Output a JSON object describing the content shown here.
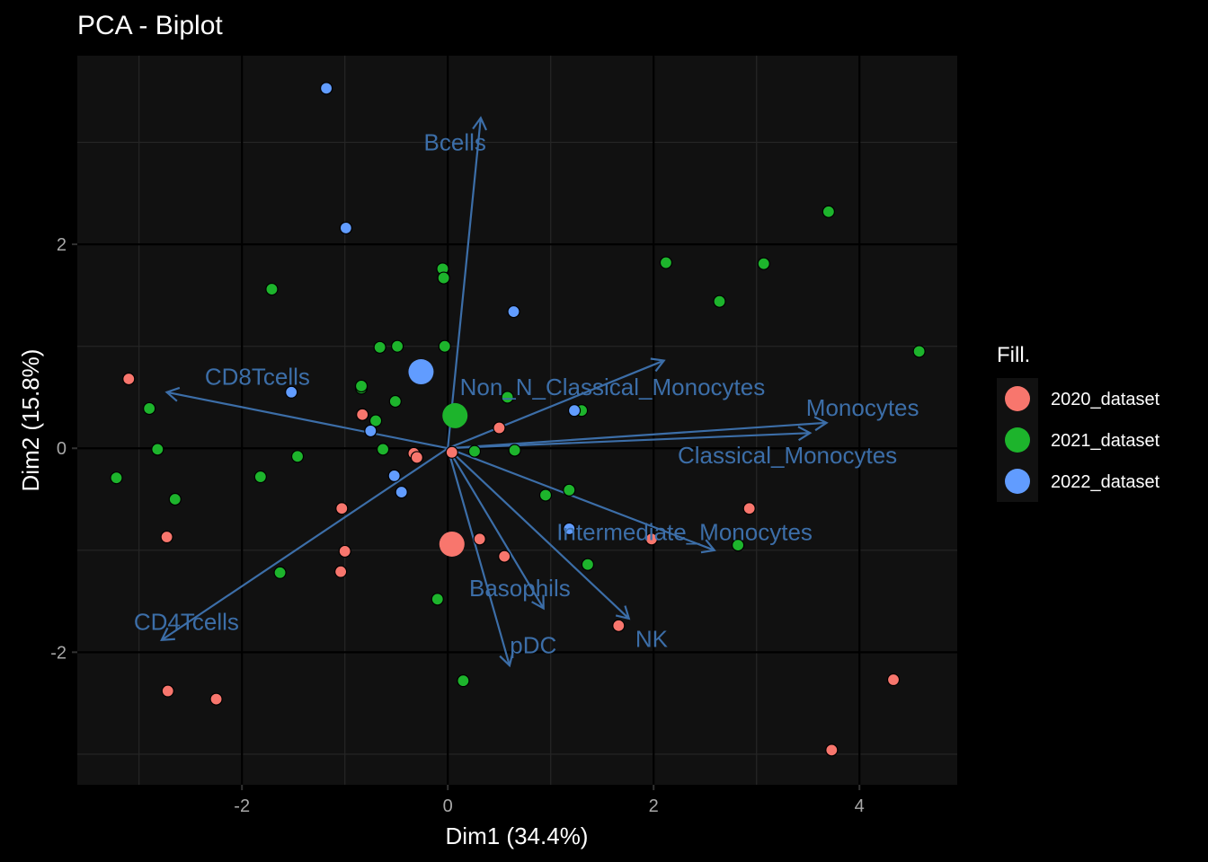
{
  "chart_data": {
    "type": "scatter",
    "title": "PCA - Biplot",
    "xlabel": "Dim1 (34.4%)",
    "ylabel": "Dim2 (15.8%)",
    "xlim": [
      -3.6,
      4.95
    ],
    "ylim": [
      -3.3,
      3.85
    ],
    "x_ticks": [
      -2,
      0,
      2,
      4
    ],
    "y_ticks": [
      -2,
      0,
      2
    ],
    "x_tick_labels": [
      "-2",
      "0",
      "2",
      "4"
    ],
    "y_tick_labels": [
      "-2",
      "0",
      "2"
    ],
    "grid": true,
    "legend": {
      "title": "Fill.",
      "position": "right",
      "entries": [
        "2020_dataset",
        "2021_dataset",
        "2022_dataset"
      ]
    },
    "colors": {
      "2020_dataset": "#F8766D",
      "2021_dataset": "#1DB42C",
      "2022_dataset": "#619CFF",
      "arrow": "#3C6EA8",
      "panel": "#111111",
      "grid_major": "#000000",
      "grid_minor": "#262626"
    },
    "series": [
      {
        "name": "2020_dataset",
        "points": [
          [
            -3.1,
            0.68
          ],
          [
            -0.83,
            0.33
          ],
          [
            -2.73,
            -0.87
          ],
          [
            -1.03,
            -0.59
          ],
          [
            -1.0,
            -1.01
          ],
          [
            -1.04,
            -1.21
          ],
          [
            -0.33,
            -0.05
          ],
          [
            -0.3,
            -0.09
          ],
          [
            0.5,
            0.2
          ],
          [
            0.31,
            -0.89
          ],
          [
            0.55,
            -1.06
          ],
          [
            1.66,
            -1.74
          ],
          [
            1.98,
            -0.89
          ],
          [
            2.93,
            -0.59
          ],
          [
            -2.72,
            -2.38
          ],
          [
            -2.25,
            -2.46
          ],
          [
            3.73,
            -2.96
          ],
          [
            4.33,
            -2.27
          ],
          [
            0.04,
            -0.04
          ]
        ],
        "centroid": [
          0.04,
          -0.94
        ]
      },
      {
        "name": "2021_dataset",
        "points": [
          [
            -1.71,
            1.56
          ],
          [
            -0.05,
            1.76
          ],
          [
            -0.04,
            1.67
          ],
          [
            -0.66,
            0.99
          ],
          [
            -0.49,
            1.0
          ],
          [
            -0.03,
            1.0
          ],
          [
            -0.84,
            0.59
          ],
          [
            -0.84,
            0.61
          ],
          [
            -2.9,
            0.39
          ],
          [
            -0.51,
            0.46
          ],
          [
            -0.7,
            0.27
          ],
          [
            -2.82,
            -0.01
          ],
          [
            -0.63,
            -0.01
          ],
          [
            -1.46,
            -0.08
          ],
          [
            -3.22,
            -0.29
          ],
          [
            -1.82,
            -0.28
          ],
          [
            -2.65,
            -0.5
          ],
          [
            -1.63,
            -1.22
          ],
          [
            -0.1,
            -1.48
          ],
          [
            0.15,
            -2.28
          ],
          [
            0.26,
            -0.03
          ],
          [
            0.65,
            -0.02
          ],
          [
            0.58,
            0.5
          ],
          [
            1.3,
            0.37
          ],
          [
            0.95,
            -0.46
          ],
          [
            1.18,
            -0.41
          ],
          [
            1.36,
            -1.14
          ],
          [
            2.12,
            1.82
          ],
          [
            2.64,
            1.44
          ],
          [
            3.07,
            1.81
          ],
          [
            3.7,
            2.32
          ],
          [
            4.58,
            0.95
          ],
          [
            2.82,
            -0.95
          ]
        ],
        "centroid": [
          0.07,
          0.32
        ]
      },
      {
        "name": "2022_dataset",
        "points": [
          [
            -1.18,
            3.53
          ],
          [
            -0.99,
            2.16
          ],
          [
            0.64,
            1.34
          ],
          [
            -1.52,
            0.55
          ],
          [
            -0.75,
            0.17
          ],
          [
            -0.52,
            -0.27
          ],
          [
            -0.45,
            -0.43
          ],
          [
            1.23,
            0.37
          ],
          [
            1.18,
            -0.79
          ]
        ],
        "centroid": [
          -0.26,
          0.75
        ]
      }
    ],
    "variables": [
      {
        "name": "Bcells",
        "end": [
          0.32,
          3.24
        ],
        "label_at": [
          0.07,
          3.0
        ]
      },
      {
        "name": "CD8Tcells",
        "end": [
          -2.73,
          0.55
        ],
        "label_at": [
          -1.85,
          0.7
        ]
      },
      {
        "name": "Non_N_Classical_Monocytes",
        "end": [
          2.1,
          0.86
        ],
        "label_at": [
          1.6,
          0.6
        ]
      },
      {
        "name": "Monocytes",
        "end": [
          3.68,
          0.25
        ],
        "label_at": [
          4.03,
          0.4
        ]
      },
      {
        "name": "Classical_Monocytes",
        "end": [
          3.52,
          0.15
        ],
        "label_at": [
          3.3,
          -0.07
        ]
      },
      {
        "name": "Intermediate_Monocytes",
        "end": [
          2.59,
          -1.0
        ],
        "label_at": [
          2.3,
          -0.82
        ]
      },
      {
        "name": "Basophils",
        "end": [
          0.93,
          -1.57
        ],
        "label_at": [
          0.7,
          -1.37
        ]
      },
      {
        "name": "NK",
        "end": [
          1.76,
          -1.67
        ],
        "label_at": [
          1.98,
          -1.87
        ]
      },
      {
        "name": "pDC",
        "end": [
          0.6,
          -2.13
        ],
        "label_at": [
          0.83,
          -1.93
        ]
      },
      {
        "name": "CD4Tcells",
        "end": [
          -2.78,
          -1.88
        ],
        "label_at": [
          -2.54,
          -1.7
        ]
      }
    ]
  }
}
